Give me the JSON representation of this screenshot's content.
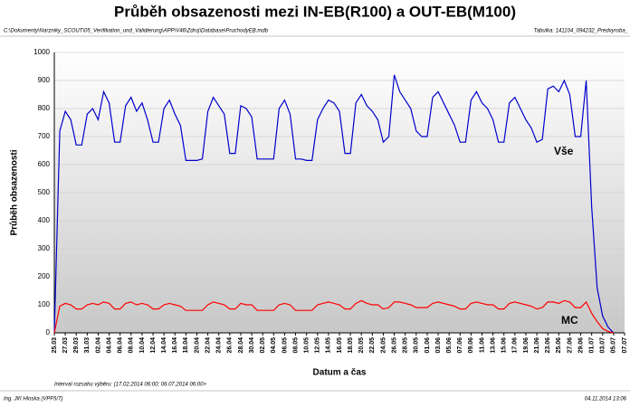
{
  "chart_data": {
    "type": "line",
    "title": "Průběh obsazenosti mezi IN-EB(R100) a OUT-EB(M100)",
    "source": "C:\\Dokumenty\\Narzniky_SCOUT\\05_Verifikation_und_Validierung\\APP\\V46\\Zdroj\\Database\\PruchodyEB.mdb",
    "table": "Tabulka:  141104_094232_Predvyroba_",
    "ylabel": "Průběh obsazenosti",
    "xlabel": "Datum a čas",
    "interval": "Interval rozsahu výběru:  (17.02.2014 06:00; 06.07.2014 06:00>",
    "author": "Ing. Jiří Hloska (VPF5/7)",
    "date": "04.11.2014 13:06",
    "ylim": [
      0,
      1000
    ],
    "yticks": [
      0,
      100,
      200,
      300,
      400,
      500,
      600,
      700,
      800,
      900,
      1000
    ],
    "grid": true,
    "categories": [
      "25.03",
      null,
      "27.03",
      null,
      "29.03",
      null,
      "31.03",
      null,
      "02.04",
      null,
      "04.04",
      null,
      "06.04",
      null,
      "08.04",
      null,
      "10.04",
      null,
      "12.04",
      null,
      "14.04",
      null,
      "16.04",
      null,
      "18.04",
      null,
      "20.04",
      null,
      "22.04",
      null,
      "24.04",
      null,
      "26.04",
      null,
      "28.04",
      null,
      "30.04",
      null,
      "02.05",
      null,
      "04.05",
      null,
      "06.05",
      null,
      "08.05",
      null,
      "10.05",
      null,
      "12.05",
      null,
      "14.05",
      null,
      "16.05",
      null,
      "18.05",
      null,
      "20.05",
      null,
      "22.05",
      null,
      "24.05",
      null,
      "26.05",
      null,
      "28.05",
      null,
      "30.05",
      null,
      "01.06",
      null,
      "03.06",
      null,
      "05.06",
      null,
      "07.06",
      null,
      "09.06",
      null,
      "11.06",
      null,
      "13.06",
      null,
      "15.06",
      null,
      "17.06",
      null,
      "19.06",
      null,
      "21.06",
      null,
      "23.06",
      null,
      "25.06",
      null,
      "27.06",
      null,
      "29.06",
      null,
      "01.07",
      null,
      "03.07",
      null,
      "05.07",
      null,
      "07.07"
    ],
    "series": [
      {
        "name": "Vše",
        "color": "#0000cc",
        "values": [
          0,
          720,
          790,
          760,
          670,
          670,
          780,
          800,
          760,
          860,
          820,
          680,
          680,
          810,
          840,
          790,
          820,
          760,
          680,
          680,
          800,
          830,
          780,
          740,
          615,
          615,
          615,
          620,
          790,
          840,
          810,
          780,
          640,
          640,
          810,
          800,
          770,
          620,
          620,
          620,
          620,
          800,
          830,
          780,
          620,
          620,
          615,
          615,
          760,
          800,
          830,
          820,
          790,
          640,
          640,
          820,
          850,
          810,
          790,
          760,
          680,
          700,
          920,
          860,
          830,
          800,
          720,
          700,
          700,
          840,
          860,
          820,
          780,
          740,
          680,
          680,
          830,
          860,
          820,
          800,
          760,
          680,
          680,
          820,
          840,
          800,
          760,
          730,
          680,
          690,
          870,
          880,
          860,
          900,
          850,
          700,
          700,
          900,
          450,
          160,
          60,
          20,
          0,
          null,
          null
        ]
      },
      {
        "name": "MC",
        "color": "#ff0000",
        "values": [
          0,
          95,
          105,
          100,
          85,
          85,
          100,
          105,
          100,
          110,
          105,
          85,
          85,
          105,
          110,
          100,
          105,
          100,
          85,
          85,
          100,
          105,
          100,
          95,
          80,
          80,
          80,
          80,
          100,
          110,
          105,
          100,
          85,
          85,
          105,
          100,
          100,
          80,
          80,
          80,
          80,
          100,
          105,
          100,
          80,
          80,
          80,
          80,
          100,
          105,
          110,
          105,
          100,
          85,
          85,
          105,
          115,
          105,
          100,
          100,
          85,
          90,
          110,
          110,
          105,
          100,
          90,
          90,
          90,
          105,
          110,
          105,
          100,
          95,
          85,
          85,
          105,
          110,
          105,
          100,
          100,
          85,
          85,
          105,
          110,
          105,
          100,
          95,
          85,
          90,
          110,
          110,
          105,
          115,
          110,
          90,
          90,
          110,
          70,
          40,
          15,
          5,
          0,
          null,
          null
        ]
      }
    ]
  }
}
